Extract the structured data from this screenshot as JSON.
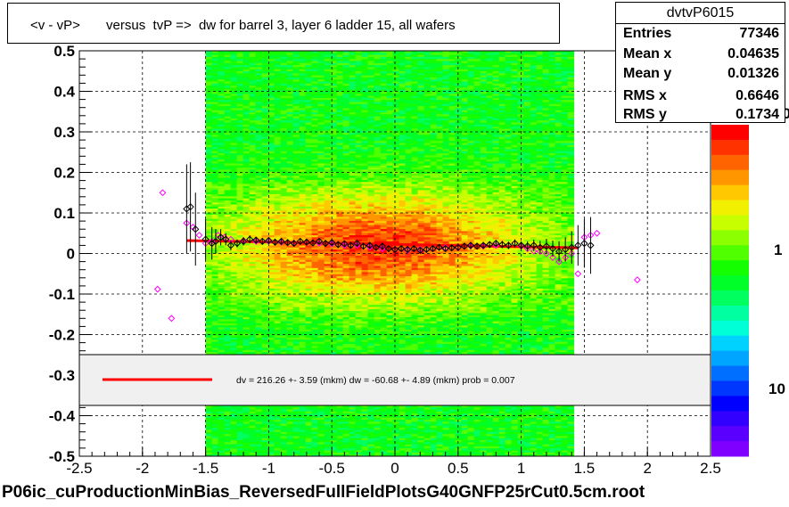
{
  "title": "<v - vP>       versus  tvP =>  dw for barrel 3, layer 6 ladder 15, all wafers",
  "footer": "P06ic_cuProductionMinBias_ReversedFullFieldPlotsG40GNFP25rCut0.5cm.root",
  "stats": {
    "name": "dvtvP6015",
    "rows": [
      {
        "label": "Entries",
        "value": "77346"
      },
      {
        "label": "Mean x",
        "value": "0.04635"
      },
      {
        "label": "Mean y",
        "value": "0.01326"
      },
      {
        "label": "RMS x",
        "value": "0.6646"
      },
      {
        "label": "RMS y",
        "value": "0.1734"
      }
    ]
  },
  "legend": {
    "text": "dv =  216.26 +-  3.59 (mkm) dw =  -60.68 +-  4.89 (mkm) prob = 0.007",
    "line_color": "#ff0000"
  },
  "palette_labels": [
    "10",
    "1",
    "10"
  ],
  "colors": {
    "fit_line": "#ff0000",
    "profile_black": "#000000",
    "profile_magenta": "#ff00ff",
    "palette": [
      "#7f00ff",
      "#5a00ff",
      "#3200ff",
      "#0000ff",
      "#0037ff",
      "#006eff",
      "#00a5ff",
      "#00d2ff",
      "#00ffd7",
      "#00ffa0",
      "#00ff5f",
      "#00ff28",
      "#14ff00",
      "#50ff00",
      "#8cff00",
      "#c8ff00",
      "#f0f000",
      "#ffc800",
      "#ff9600",
      "#ff6400",
      "#ff3200",
      "#ff0000"
    ]
  },
  "chart_data": {
    "type": "heatmap",
    "xlim": [
      -2.5,
      2.5
    ],
    "ylim": [
      -0.5,
      0.5
    ],
    "x_ticks": [
      "-2.5",
      "-2",
      "-1.5",
      "-1",
      "-0.5",
      "0",
      "0.5",
      "1",
      "1.5",
      "2",
      "2.5"
    ],
    "y_ticks": [
      "0.5",
      "0.4",
      "0.3",
      "0.2",
      "0.1",
      "0",
      "-0.1",
      "-0.2",
      "-0.3",
      "-0.4",
      "-0.5"
    ],
    "grid": true,
    "fill_x_range": [
      -1.5,
      1.4
    ],
    "fit": {
      "x": [
        -1.65,
        1.45
      ],
      "y": [
        0.032,
        0.014
      ]
    },
    "profile_black": {
      "x": [
        -1.65,
        -1.62,
        -1.58,
        -1.5,
        -1.45,
        -1.42,
        -1.38,
        -1.34,
        -1.3,
        -1.25,
        -1.2,
        -1.15,
        -1.1,
        -1.05,
        -1.0,
        -0.95,
        -0.9,
        -0.85,
        -0.8,
        -0.75,
        -0.7,
        -0.65,
        -0.6,
        -0.55,
        -0.5,
        -0.45,
        -0.4,
        -0.35,
        -0.3,
        -0.25,
        -0.2,
        -0.15,
        -0.1,
        -0.05,
        0.0,
        0.05,
        0.1,
        0.15,
        0.2,
        0.25,
        0.3,
        0.35,
        0.4,
        0.45,
        0.5,
        0.55,
        0.6,
        0.65,
        0.7,
        0.75,
        0.8,
        0.85,
        0.9,
        0.95,
        1.0,
        1.05,
        1.1,
        1.15,
        1.2,
        1.25,
        1.3,
        1.35,
        1.4,
        1.45,
        1.5,
        1.55
      ],
      "y": [
        0.11,
        0.115,
        0.06,
        0.035,
        0.025,
        0.03,
        0.04,
        0.035,
        0.02,
        0.025,
        0.03,
        0.035,
        0.033,
        0.03,
        0.032,
        0.028,
        0.03,
        0.027,
        0.025,
        0.03,
        0.028,
        0.026,
        0.03,
        0.025,
        0.027,
        0.022,
        0.024,
        0.02,
        0.025,
        0.018,
        0.02,
        0.015,
        0.018,
        0.012,
        0.01,
        0.012,
        0.01,
        0.012,
        0.008,
        0.01,
        0.012,
        0.015,
        0.012,
        0.014,
        0.015,
        0.018,
        0.02,
        0.018,
        0.02,
        0.022,
        0.025,
        0.022,
        0.02,
        0.025,
        0.02,
        0.018,
        0.02,
        0.015,
        0.018,
        0.012,
        0.005,
        0.01,
        0.015,
        0.02,
        0.025,
        0.02
      ],
      "err": [
        0.11,
        0.11,
        0.09,
        0.05,
        0.04,
        0.03,
        0.02,
        0.015,
        0.012,
        0.01,
        0.01,
        0.01,
        0.008,
        0.008,
        0.008,
        0.007,
        0.007,
        0.007,
        0.007,
        0.007,
        0.007,
        0.007,
        0.007,
        0.007,
        0.007,
        0.007,
        0.007,
        0.007,
        0.007,
        0.007,
        0.007,
        0.007,
        0.007,
        0.007,
        0.007,
        0.007,
        0.007,
        0.007,
        0.007,
        0.007,
        0.007,
        0.007,
        0.007,
        0.007,
        0.007,
        0.007,
        0.008,
        0.008,
        0.008,
        0.008,
        0.008,
        0.009,
        0.009,
        0.01,
        0.01,
        0.012,
        0.014,
        0.016,
        0.018,
        0.02,
        0.025,
        0.03,
        0.04,
        0.05,
        0.06,
        0.07
      ]
    },
    "profile_magenta": {
      "x": [
        -1.88,
        -1.84,
        -1.77,
        -1.65,
        -1.6,
        -1.55,
        -1.5,
        -1.45,
        -1.4,
        -1.35,
        -1.3,
        -1.2,
        -1.1,
        -1.0,
        -0.9,
        -0.8,
        -0.7,
        -0.6,
        -0.5,
        -0.4,
        -0.3,
        -0.2,
        -0.1,
        0.0,
        0.1,
        0.2,
        0.3,
        0.4,
        0.5,
        0.6,
        0.7,
        0.8,
        0.9,
        1.0,
        1.05,
        1.1,
        1.15,
        1.2,
        1.25,
        1.3,
        1.35,
        1.4,
        1.45,
        1.5,
        1.55,
        1.6,
        1.92
      ],
      "y": [
        -0.088,
        0.15,
        -0.16,
        0.075,
        0.065,
        0.045,
        0.025,
        0.03,
        0.045,
        0.04,
        0.035,
        0.032,
        0.03,
        0.03,
        0.028,
        0.026,
        0.028,
        0.025,
        0.024,
        0.02,
        0.02,
        0.016,
        0.012,
        0.01,
        0.008,
        0.01,
        0.012,
        0.014,
        0.015,
        0.018,
        0.018,
        0.02,
        0.02,
        0.018,
        0.012,
        0.006,
        0.005,
        0.0,
        -0.01,
        -0.02,
        -0.01,
        0.0,
        -0.05,
        0.04,
        0.045,
        0.05,
        -0.065
      ]
    }
  }
}
